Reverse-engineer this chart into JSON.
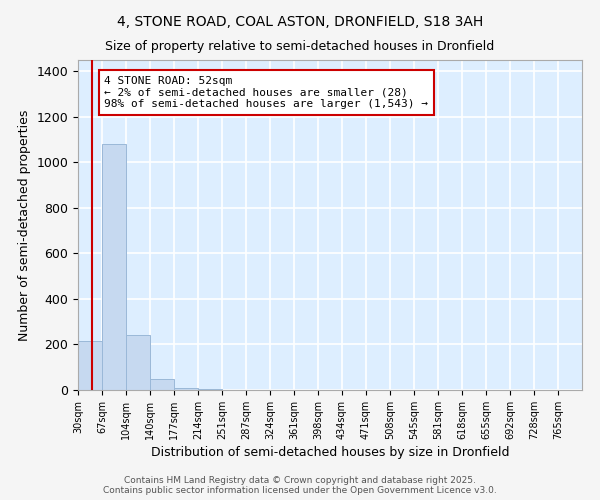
{
  "title_line1": "4, STONE ROAD, COAL ASTON, DRONFIELD, S18 3AH",
  "title_line2": "Size of property relative to semi-detached houses in Dronfield",
  "xlabel": "Distribution of semi-detached houses by size in Dronfield",
  "ylabel": "Number of semi-detached properties",
  "bar_color": "#c6d9f0",
  "bar_edge_color": "#9ab8d8",
  "plot_bg_color": "#ddeeff",
  "fig_bg_color": "#f5f5f5",
  "grid_color": "#ffffff",
  "bin_labels": [
    "30sqm",
    "67sqm",
    "104sqm",
    "140sqm",
    "177sqm",
    "214sqm",
    "251sqm",
    "287sqm",
    "324sqm",
    "361sqm",
    "398sqm",
    "434sqm",
    "471sqm",
    "508sqm",
    "545sqm",
    "581sqm",
    "618sqm",
    "655sqm",
    "692sqm",
    "728sqm",
    "765sqm"
  ],
  "bin_edges": [
    30,
    67,
    104,
    140,
    177,
    214,
    251,
    287,
    324,
    361,
    398,
    434,
    471,
    508,
    545,
    581,
    618,
    655,
    692,
    728,
    765,
    802
  ],
  "bar_heights": [
    215,
    1080,
    240,
    50,
    10,
    5,
    0,
    0,
    0,
    0,
    0,
    0,
    0,
    0,
    0,
    0,
    0,
    0,
    0,
    0,
    0
  ],
  "red_line_x": 52,
  "annotation_text": "4 STONE ROAD: 52sqm\n← 2% of semi-detached houses are smaller (28)\n98% of semi-detached houses are larger (1,543) →",
  "ylim": [
    0,
    1450
  ],
  "yticks": [
    0,
    200,
    400,
    600,
    800,
    1000,
    1200,
    1400
  ],
  "footer_text": "Contains HM Land Registry data © Crown copyright and database right 2025.\nContains public sector information licensed under the Open Government Licence v3.0.",
  "red_line_color": "#cc0000",
  "annotation_box_edge": "#cc0000"
}
